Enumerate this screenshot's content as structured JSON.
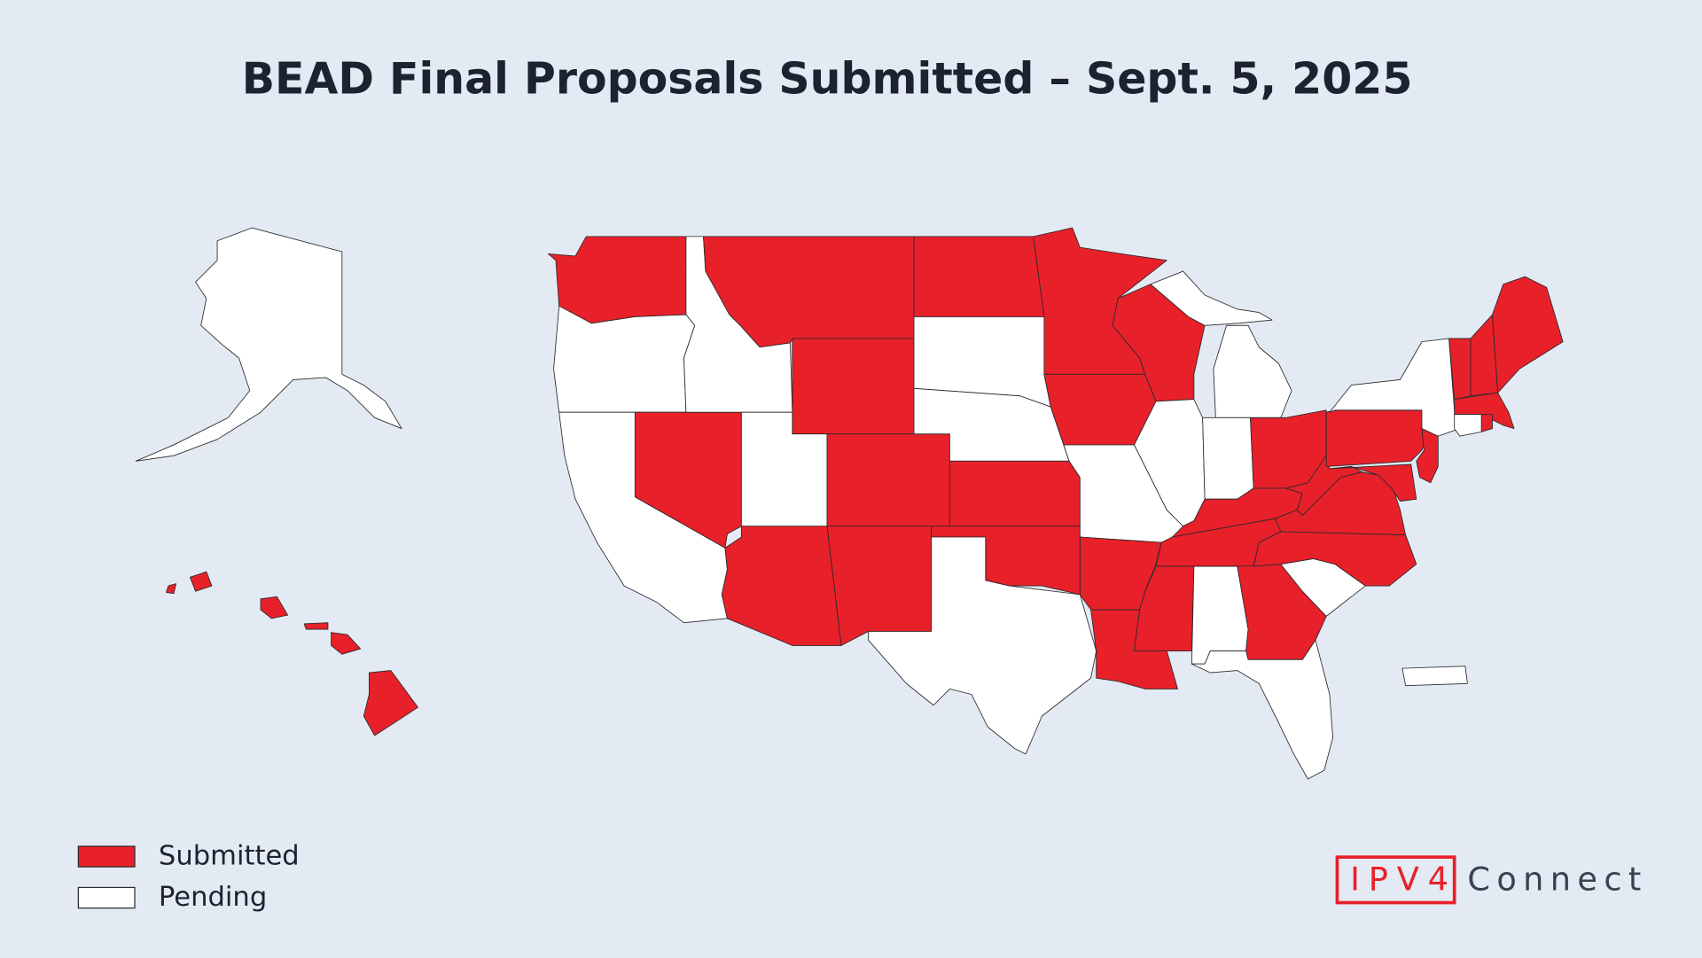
{
  "title": "BEAD Final Proposals Submitted – Sept. 5, 2025",
  "legend": [
    {
      "label": "Submitted",
      "color": "#e8202a"
    },
    {
      "label": "Pending",
      "color": "#ffffff"
    }
  ],
  "regions": [
    "Submitted",
    "Pending",
    "Pending",
    "Submitted",
    "Pending",
    "Submitted",
    "Submitted",
    "Pending",
    "Submitted",
    "Submitted",
    "Submitted",
    "Submitted",
    "Pending",
    "Pending",
    "Submitted",
    "Submitted",
    "Pending",
    "Submitted",
    "Submitted",
    "Pending",
    "Submitted",
    "Submitted",
    "Submitted",
    "Pending",
    "Pending",
    "Pending",
    "Submitted",
    "Submitted",
    "Submitted",
    "Submitted",
    "Pending",
    "Submitted",
    "Pending",
    "Pending",
    "Submitted",
    "Submitted",
    "Submitted",
    "Submitted",
    "Submitted",
    "Submitted",
    "Pending",
    "Submitted",
    "Submitted",
    "Submitted",
    "Submitted",
    "Pending",
    "Submitted",
    "Pending",
    "Pending",
    "Submitted"
  ],
  "brand": {
    "mark": "IPV4",
    "name": "Connect"
  }
}
